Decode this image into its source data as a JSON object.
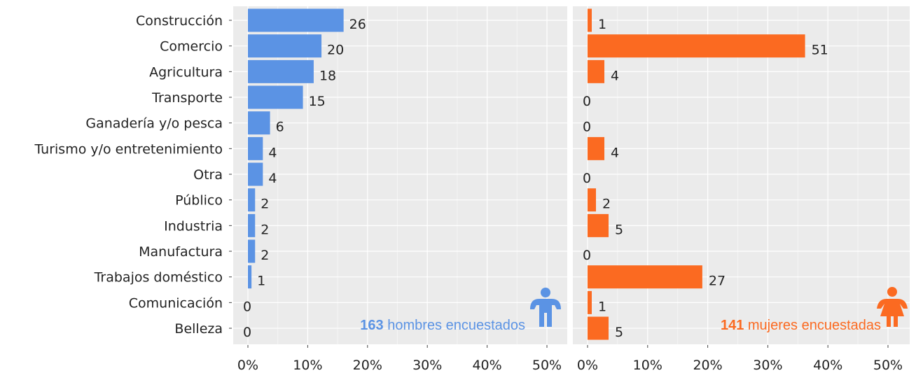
{
  "chart_data": {
    "type": "bar",
    "orientation": "horizontal",
    "categories": [
      "Construcción",
      "Comercio",
      "Agricultura",
      "Transporte",
      "Ganadería y/o pesca",
      "Turismo y/o entretenimiento",
      "Otra",
      "Público",
      "Industria",
      "Manufactura",
      "Trabajos doméstico",
      "Comunicación",
      "Belleza"
    ],
    "x_ticks": [
      "0%",
      "10%",
      "20%",
      "30%",
      "40%",
      "50%"
    ],
    "xlim": [
      0,
      50
    ],
    "grid": true,
    "panels": [
      {
        "count": 163,
        "note": "hombres encuestados",
        "color": "#5b93e4",
        "icon": "man-icon",
        "labels": [
          26,
          20,
          18,
          15,
          6,
          4,
          4,
          2,
          2,
          2,
          1,
          0,
          0
        ],
        "values": [
          16.0,
          12.3,
          11.0,
          9.2,
          3.7,
          2.5,
          2.5,
          1.2,
          1.2,
          1.2,
          0.6,
          0,
          0
        ]
      },
      {
        "count": 141,
        "note": "mujeres encuestadas",
        "color": "#fb6a21",
        "icon": "woman-icon",
        "labels": [
          1,
          51,
          4,
          0,
          0,
          4,
          0,
          2,
          5,
          0,
          27,
          1,
          5
        ],
        "values": [
          0.7,
          36.2,
          2.8,
          0,
          0,
          2.8,
          0,
          1.4,
          3.5,
          0,
          19.1,
          0.7,
          3.5
        ]
      }
    ]
  }
}
